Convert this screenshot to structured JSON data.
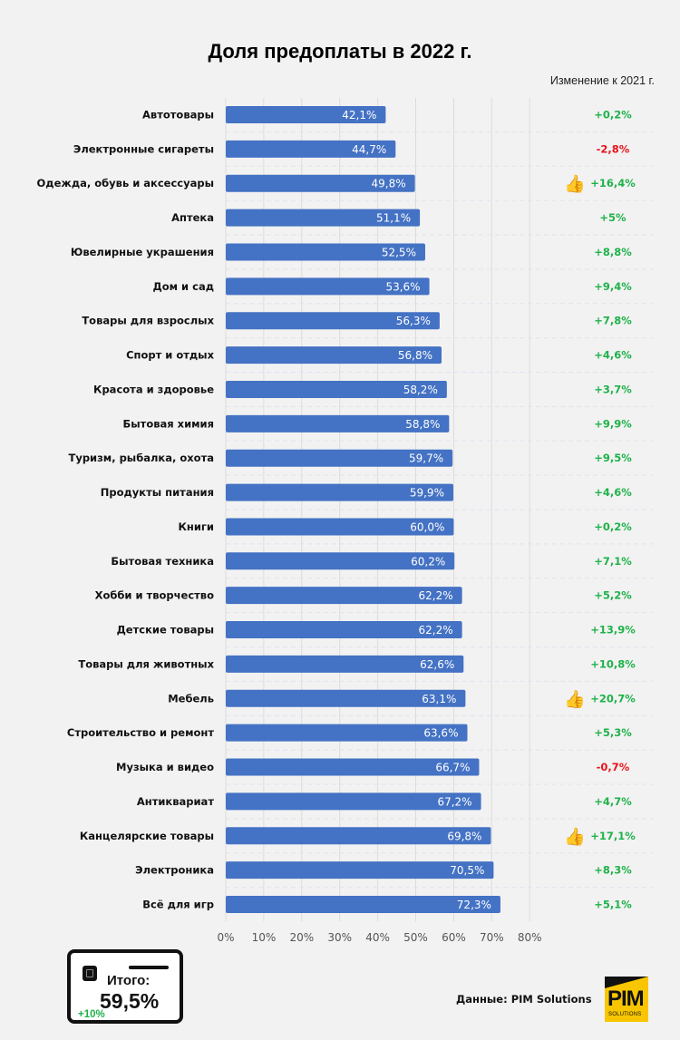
{
  "colors": {
    "bar": "#4472c4",
    "positive": "#1fb24a",
    "negative": "#e8141c",
    "background": "#f2f2f2",
    "grid": "#dcdcdc"
  },
  "chart_data": {
    "type": "bar",
    "orientation": "horizontal",
    "title": "Доля предоплаты в 2022 г.",
    "change_header": "Изменение к 2021  г.",
    "xlabel": "",
    "ylabel": "",
    "xlim": [
      0,
      80
    ],
    "x_ticks": [
      0,
      10,
      20,
      30,
      40,
      50,
      60,
      70,
      80
    ],
    "x_tick_labels": [
      "0%",
      "10%",
      "20%",
      "30%",
      "40%",
      "50%",
      "60%",
      "70%",
      "80%"
    ],
    "grid": "vertical",
    "categories": [
      "Автотовары",
      "Электронные сигареты",
      "Одежда, обувь и аксессуары",
      "Аптека",
      "Ювелирные украшения",
      "Дом и сад",
      "Товары для взрослых",
      "Спорт и отдых",
      "Красота и здоровье",
      "Бытовая химия",
      "Туризм, рыбалка, охота",
      "Продукты питания",
      "Книги",
      "Бытовая техника",
      "Хобби и творчество",
      "Детские товары",
      "Товары для животных",
      "Мебель",
      "Строительство и ремонт",
      "Музыка и видео",
      "Антиквариат",
      "Канцелярские товары",
      "Электроника",
      "Всё для игр"
    ],
    "values": [
      42.1,
      44.7,
      49.8,
      51.1,
      52.5,
      53.6,
      56.3,
      56.8,
      58.2,
      58.8,
      59.7,
      59.9,
      60.0,
      60.2,
      62.2,
      62.2,
      62.6,
      63.1,
      63.6,
      66.7,
      67.2,
      69.8,
      70.5,
      72.3
    ],
    "value_labels": [
      "42,1%",
      "44,7%",
      "49,8%",
      "51,1%",
      "52,5%",
      "53,6%",
      "56,3%",
      "56,8%",
      "58,2%",
      "58,8%",
      "59,7%",
      "59,9%",
      "60,0%",
      "60,2%",
      "62,2%",
      "62,2%",
      "62,6%",
      "63,1%",
      "63,6%",
      "66,7%",
      "67,2%",
      "69,8%",
      "70,5%",
      "72,3%"
    ],
    "change_vs_2021": [
      0.2,
      -2.8,
      16.4,
      5,
      8.8,
      9.4,
      7.8,
      4.6,
      3.7,
      9.9,
      9.5,
      4.6,
      0.2,
      7.1,
      5.2,
      13.9,
      10.8,
      20.7,
      5.3,
      -0.7,
      4.7,
      17.1,
      8.3,
      5.1
    ],
    "change_labels": [
      "+0,2%",
      "-2,8%",
      "+16,4%",
      "+5%",
      "+8,8%",
      "+9,4%",
      "+7,8%",
      "+4,6%",
      "+3,7%",
      "+9,9%",
      "+9,5%",
      "+4,6%",
      "+0,2%",
      "+7,1%",
      "+5,2%",
      "+13,9%",
      "+10,8%",
      "+20,7%",
      "+5,3%",
      "-0,7%",
      "+4,7%",
      "+17,1%",
      "+8,3%",
      "+5,1%"
    ],
    "thumbs_up_rows": [
      "Одежда, обувь и аксессуары",
      "Мебель",
      "Канцелярские товары"
    ]
  },
  "total_card": {
    "label": "Итого:",
    "value": "59,5%",
    "change": "+10%"
  },
  "source": "Данные: PIM Solutions",
  "logo": {
    "main": "PIM",
    "sub": "SOLUTIONS"
  }
}
